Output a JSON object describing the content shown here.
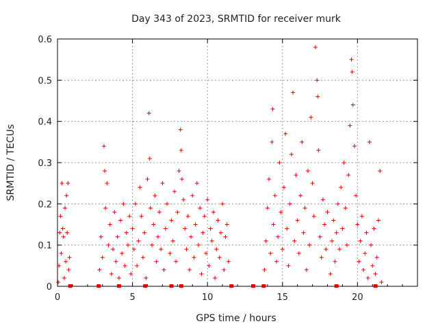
{
  "chart_data": {
    "type": "scatter",
    "title": "Day 343 of 2023, SRMTID for receiver murk",
    "xlabel": "GPS time / hours",
    "ylabel": "SRMTID / TECUs",
    "xlim": [
      0,
      24
    ],
    "ylim": [
      0,
      0.6
    ],
    "grid": true,
    "marker": "+",
    "color": "#e00000",
    "x_ticks": [
      0,
      5,
      10,
      15,
      20
    ],
    "y_ticks": [
      0,
      0.1,
      0.2,
      0.3,
      0.4,
      0.5,
      0.6
    ],
    "x_tick_labels": [
      "0",
      "5",
      "10",
      "15",
      "20"
    ],
    "y_tick_labels": [
      "0",
      "0.1",
      "0.2",
      "0.3",
      "0.4",
      "0.5",
      "0.6"
    ],
    "points": [
      {
        "x": 0.05,
        "y": 0.01
      },
      {
        "x": 0.1,
        "y": 0.05
      },
      {
        "x": 0.15,
        "y": 0.13
      },
      {
        "x": 0.2,
        "y": 0.17
      },
      {
        "x": 0.25,
        "y": 0.08
      },
      {
        "x": 0.3,
        "y": 0.25
      },
      {
        "x": 0.35,
        "y": 0.14
      },
      {
        "x": 0.4,
        "y": 0.12
      },
      {
        "x": 0.45,
        "y": 0.02
      },
      {
        "x": 0.5,
        "y": 0.19
      },
      {
        "x": 0.55,
        "y": 0.06
      },
      {
        "x": 0.6,
        "y": 0.22
      },
      {
        "x": 0.65,
        "y": 0.13
      },
      {
        "x": 0.7,
        "y": 0.25
      },
      {
        "x": 0.75,
        "y": 0.04
      },
      {
        "x": 0.8,
        "y": 0.07
      },
      {
        "x": 2.8,
        "y": 0.04
      },
      {
        "x": 2.9,
        "y": 0.12
      },
      {
        "x": 3.0,
        "y": 0.07
      },
      {
        "x": 3.1,
        "y": 0.34
      },
      {
        "x": 3.15,
        "y": 0.28
      },
      {
        "x": 3.2,
        "y": 0.19
      },
      {
        "x": 3.3,
        "y": 0.25
      },
      {
        "x": 3.4,
        "y": 0.1
      },
      {
        "x": 3.5,
        "y": 0.15
      },
      {
        "x": 3.6,
        "y": 0.03
      },
      {
        "x": 3.7,
        "y": 0.09
      },
      {
        "x": 3.8,
        "y": 0.18
      },
      {
        "x": 3.9,
        "y": 0.06
      },
      {
        "x": 4.0,
        "y": 0.12
      },
      {
        "x": 4.1,
        "y": 0.02
      },
      {
        "x": 4.2,
        "y": 0.16
      },
      {
        "x": 4.3,
        "y": 0.08
      },
      {
        "x": 4.4,
        "y": 0.2
      },
      {
        "x": 4.5,
        "y": 0.05
      },
      {
        "x": 4.6,
        "y": 0.13
      },
      {
        "x": 4.7,
        "y": 0.1
      },
      {
        "x": 4.8,
        "y": 0.17
      },
      {
        "x": 4.9,
        "y": 0.03
      },
      {
        "x": 5.0,
        "y": 0.14
      },
      {
        "x": 5.1,
        "y": 0.09
      },
      {
        "x": 5.2,
        "y": 0.2
      },
      {
        "x": 5.3,
        "y": 0.05
      },
      {
        "x": 5.4,
        "y": 0.11
      },
      {
        "x": 5.5,
        "y": 0.24
      },
      {
        "x": 5.6,
        "y": 0.17
      },
      {
        "x": 5.7,
        "y": 0.07
      },
      {
        "x": 5.8,
        "y": 0.13
      },
      {
        "x": 5.9,
        "y": 0.02
      },
      {
        "x": 6.0,
        "y": 0.26
      },
      {
        "x": 6.1,
        "y": 0.42
      },
      {
        "x": 6.15,
        "y": 0.31
      },
      {
        "x": 6.2,
        "y": 0.19
      },
      {
        "x": 6.3,
        "y": 0.1
      },
      {
        "x": 6.4,
        "y": 0.15
      },
      {
        "x": 6.5,
        "y": 0.22
      },
      {
        "x": 6.6,
        "y": 0.06
      },
      {
        "x": 6.7,
        "y": 0.12
      },
      {
        "x": 6.8,
        "y": 0.18
      },
      {
        "x": 6.9,
        "y": 0.09
      },
      {
        "x": 7.0,
        "y": 0.25
      },
      {
        "x": 7.1,
        "y": 0.04
      },
      {
        "x": 7.2,
        "y": 0.14
      },
      {
        "x": 7.3,
        "y": 0.2
      },
      {
        "x": 7.5,
        "y": 0.08
      },
      {
        "x": 7.6,
        "y": 0.16
      },
      {
        "x": 7.7,
        "y": 0.11
      },
      {
        "x": 7.8,
        "y": 0.23
      },
      {
        "x": 7.9,
        "y": 0.06
      },
      {
        "x": 8.0,
        "y": 0.18
      },
      {
        "x": 8.1,
        "y": 0.28
      },
      {
        "x": 8.2,
        "y": 0.38
      },
      {
        "x": 8.25,
        "y": 0.33
      },
      {
        "x": 8.3,
        "y": 0.26
      },
      {
        "x": 8.4,
        "y": 0.21
      },
      {
        "x": 8.5,
        "y": 0.14
      },
      {
        "x": 8.6,
        "y": 0.09
      },
      {
        "x": 8.7,
        "y": 0.17
      },
      {
        "x": 8.8,
        "y": 0.04
      },
      {
        "x": 8.9,
        "y": 0.12
      },
      {
        "x": 9.0,
        "y": 0.22
      },
      {
        "x": 9.1,
        "y": 0.07
      },
      {
        "x": 9.2,
        "y": 0.15
      },
      {
        "x": 9.3,
        "y": 0.25
      },
      {
        "x": 9.4,
        "y": 0.1
      },
      {
        "x": 9.5,
        "y": 0.19
      },
      {
        "x": 9.6,
        "y": 0.03
      },
      {
        "x": 9.7,
        "y": 0.13
      },
      {
        "x": 9.8,
        "y": 0.17
      },
      {
        "x": 9.9,
        "y": 0.08
      },
      {
        "x": 10.0,
        "y": 0.21
      },
      {
        "x": 10.1,
        "y": 0.05
      },
      {
        "x": 10.2,
        "y": 0.14
      },
      {
        "x": 10.3,
        "y": 0.11
      },
      {
        "x": 10.4,
        "y": 0.18
      },
      {
        "x": 10.5,
        "y": 0.02
      },
      {
        "x": 10.6,
        "y": 0.09
      },
      {
        "x": 10.7,
        "y": 0.16
      },
      {
        "x": 10.8,
        "y": 0.07
      },
      {
        "x": 10.9,
        "y": 0.13
      },
      {
        "x": 11.0,
        "y": 0.2
      },
      {
        "x": 11.1,
        "y": 0.04
      },
      {
        "x": 11.2,
        "y": 0.12
      },
      {
        "x": 11.3,
        "y": 0.15
      },
      {
        "x": 11.4,
        "y": 0.06
      },
      {
        "x": 13.8,
        "y": 0.04
      },
      {
        "x": 13.9,
        "y": 0.11
      },
      {
        "x": 14.0,
        "y": 0.19
      },
      {
        "x": 14.1,
        "y": 0.26
      },
      {
        "x": 14.2,
        "y": 0.08
      },
      {
        "x": 14.3,
        "y": 0.35
      },
      {
        "x": 14.35,
        "y": 0.43
      },
      {
        "x": 14.4,
        "y": 0.15
      },
      {
        "x": 14.5,
        "y": 0.22
      },
      {
        "x": 14.6,
        "y": 0.06
      },
      {
        "x": 14.7,
        "y": 0.12
      },
      {
        "x": 14.8,
        "y": 0.3
      },
      {
        "x": 14.9,
        "y": 0.18
      },
      {
        "x": 15.0,
        "y": 0.09
      },
      {
        "x": 15.1,
        "y": 0.24
      },
      {
        "x": 15.2,
        "y": 0.37
      },
      {
        "x": 15.3,
        "y": 0.14
      },
      {
        "x": 15.4,
        "y": 0.05
      },
      {
        "x": 15.5,
        "y": 0.2
      },
      {
        "x": 15.6,
        "y": 0.32
      },
      {
        "x": 15.7,
        "y": 0.47
      },
      {
        "x": 15.8,
        "y": 0.11
      },
      {
        "x": 15.9,
        "y": 0.27
      },
      {
        "x": 16.0,
        "y": 0.16
      },
      {
        "x": 16.1,
        "y": 0.08
      },
      {
        "x": 16.2,
        "y": 0.22
      },
      {
        "x": 16.3,
        "y": 0.35
      },
      {
        "x": 16.4,
        "y": 0.13
      },
      {
        "x": 16.5,
        "y": 0.19
      },
      {
        "x": 16.6,
        "y": 0.04
      },
      {
        "x": 16.7,
        "y": 0.28
      },
      {
        "x": 16.8,
        "y": 0.1
      },
      {
        "x": 16.9,
        "y": 0.41
      },
      {
        "x": 17.0,
        "y": 0.25
      },
      {
        "x": 17.1,
        "y": 0.17
      },
      {
        "x": 17.2,
        "y": 0.58
      },
      {
        "x": 17.3,
        "y": 0.5
      },
      {
        "x": 17.35,
        "y": 0.46
      },
      {
        "x": 17.4,
        "y": 0.33
      },
      {
        "x": 17.5,
        "y": 0.12
      },
      {
        "x": 17.6,
        "y": 0.07
      },
      {
        "x": 17.7,
        "y": 0.21
      },
      {
        "x": 17.8,
        "y": 0.15
      },
      {
        "x": 17.9,
        "y": 0.09
      },
      {
        "x": 18.0,
        "y": 0.18
      },
      {
        "x": 18.2,
        "y": 0.03
      },
      {
        "x": 18.3,
        "y": 0.11
      },
      {
        "x": 18.4,
        "y": 0.16
      },
      {
        "x": 18.5,
        "y": 0.06
      },
      {
        "x": 18.6,
        "y": 0.13
      },
      {
        "x": 18.7,
        "y": 0.2
      },
      {
        "x": 18.8,
        "y": 0.09
      },
      {
        "x": 18.9,
        "y": 0.24
      },
      {
        "x": 19.0,
        "y": 0.14
      },
      {
        "x": 19.1,
        "y": 0.3
      },
      {
        "x": 19.2,
        "y": 0.19
      },
      {
        "x": 19.3,
        "y": 0.1
      },
      {
        "x": 19.4,
        "y": 0.27
      },
      {
        "x": 19.5,
        "y": 0.39
      },
      {
        "x": 19.6,
        "y": 0.55
      },
      {
        "x": 19.65,
        "y": 0.52
      },
      {
        "x": 19.7,
        "y": 0.44
      },
      {
        "x": 19.8,
        "y": 0.34
      },
      {
        "x": 19.9,
        "y": 0.22
      },
      {
        "x": 20.0,
        "y": 0.15
      },
      {
        "x": 20.1,
        "y": 0.06
      },
      {
        "x": 20.2,
        "y": 0.11
      },
      {
        "x": 20.3,
        "y": 0.17
      },
      {
        "x": 20.4,
        "y": 0.04
      },
      {
        "x": 20.5,
        "y": 0.08
      },
      {
        "x": 20.6,
        "y": 0.13
      },
      {
        "x": 20.7,
        "y": 0.02
      },
      {
        "x": 20.8,
        "y": 0.35
      },
      {
        "x": 20.9,
        "y": 0.1
      },
      {
        "x": 21.0,
        "y": 0.05
      },
      {
        "x": 21.1,
        "y": 0.14
      },
      {
        "x": 21.2,
        "y": 0.03
      },
      {
        "x": 21.3,
        "y": 0.07
      },
      {
        "x": 21.4,
        "y": 0.16
      },
      {
        "x": 21.5,
        "y": 0.28
      },
      {
        "x": 21.6,
        "y": 0.01
      }
    ],
    "zero_markers": [
      0.85,
      2.75,
      4.1,
      5.85,
      7.6,
      8.25,
      11.6,
      13.05,
      13.75,
      18.6,
      21.2
    ]
  }
}
